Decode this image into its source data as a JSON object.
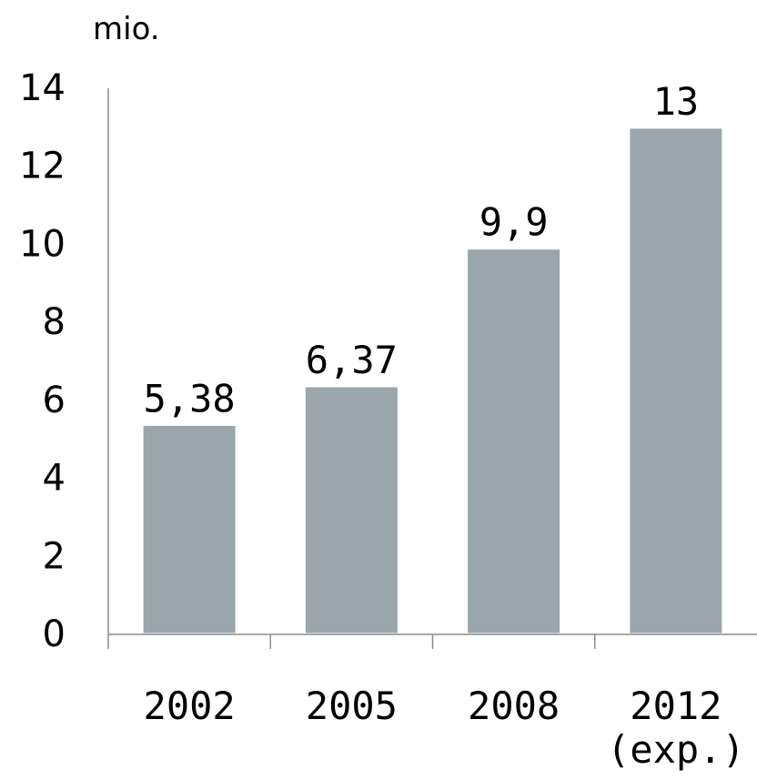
{
  "chart_data": {
    "type": "bar",
    "y_unit_label": "mio.",
    "categories": [
      "2002",
      "2005",
      "2008",
      "2012\n(exp.)"
    ],
    "values": [
      5.38,
      6.37,
      9.9,
      13
    ],
    "data_labels": [
      "5,38",
      "6,37",
      "9,9",
      "13"
    ],
    "ylim": [
      0,
      14
    ],
    "yticks": [
      0,
      2,
      4,
      6,
      8,
      10,
      12,
      14
    ],
    "bar_color": "#9aa6ab",
    "grid": false,
    "legend": "none"
  }
}
